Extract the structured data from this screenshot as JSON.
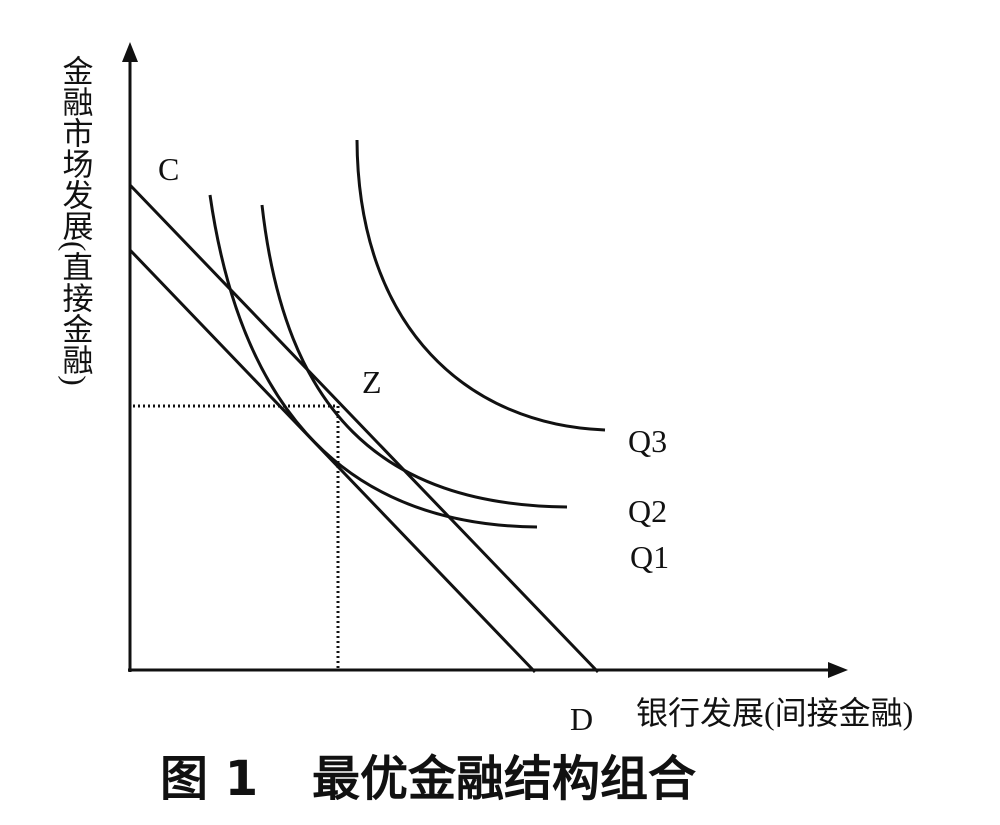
{
  "axes": {
    "y_label": "金融市场发展(直接金融)",
    "x_label": "银行发展(间接金融)"
  },
  "points": [
    {
      "label": "C"
    },
    {
      "label": "Z"
    },
    {
      "label": "D"
    }
  ],
  "curves": [
    {
      "label": "Q3"
    },
    {
      "label": "Q2"
    },
    {
      "label": "Q1"
    }
  ],
  "caption": {
    "number": "图 1",
    "title": "最优金融结构组合"
  }
}
